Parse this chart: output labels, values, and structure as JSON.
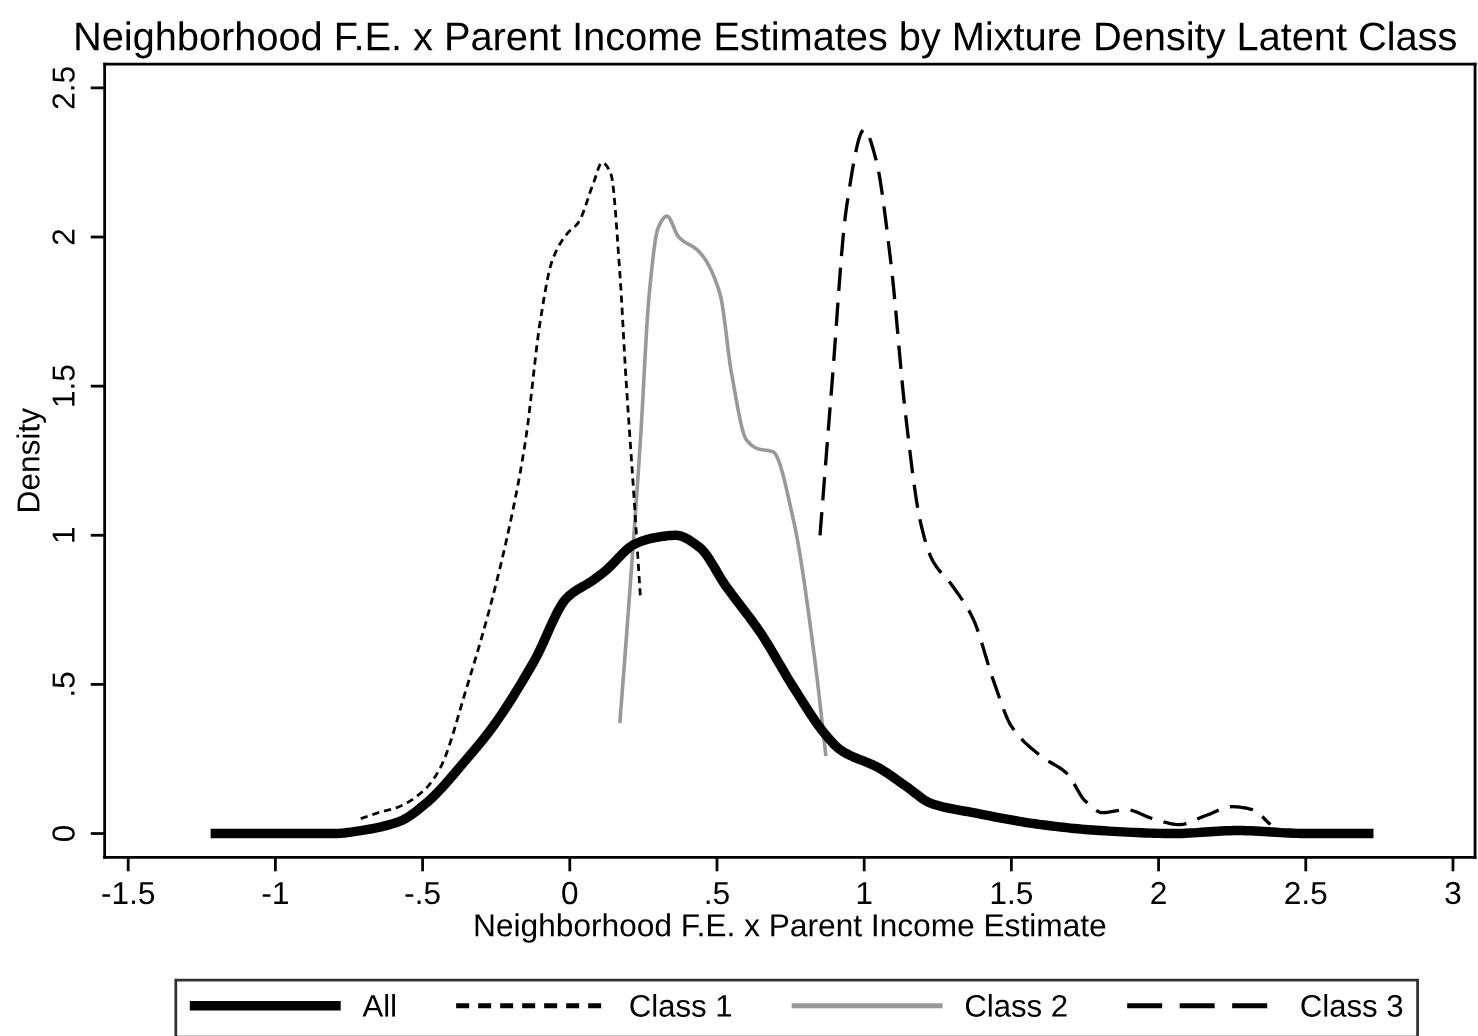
{
  "chart_data": {
    "type": "line",
    "title": "Neighborhood F.E. x Parent Income Estimates by Mixture Density Latent Class",
    "xlabel": "Neighborhood F.E. x Parent Income Estimate",
    "ylabel": "Density",
    "xlim": [
      -1.58,
      3.075
    ],
    "ylim": [
      -0.08,
      2.58
    ],
    "xticks": [
      -1.5,
      -1,
      {
        "value": -0.5,
        "label": "-.5"
      },
      0,
      {
        "value": 0.5,
        "label": ".5"
      },
      1,
      1.5,
      2,
      2.5,
      3
    ],
    "yticks": [
      0,
      {
        "value": 0.5,
        "label": ".5"
      },
      1,
      1.5,
      2,
      2.5
    ],
    "grid": false,
    "legend": "bottom",
    "marker": "none",
    "series": [
      {
        "name": "All",
        "color": "#000000",
        "line_style": "solid",
        "x": [
          -1.22,
          -0.8,
          -0.71,
          -0.58,
          -0.49,
          -0.35,
          -0.26,
          -0.12,
          -0.01,
          0.08,
          0.12,
          0.22,
          0.28,
          0.36,
          0.44,
          0.53,
          0.65,
          0.76,
          0.87,
          0.92,
          1.05,
          1.14,
          1.23,
          1.37,
          1.6,
          1.8,
          2.05,
          2.27,
          2.5,
          2.73
        ],
        "values": [
          0,
          0,
          0.01,
          0.04,
          0.1,
          0.25,
          0.36,
          0.58,
          0.79,
          0.85,
          0.88,
          0.97,
          0.99,
          1.0,
          0.96,
          0.83,
          0.67,
          0.49,
          0.33,
          0.28,
          0.22,
          0.16,
          0.1,
          0.07,
          0.03,
          0.01,
          0,
          0.01,
          0,
          0
        ]
      },
      {
        "name": "Class 1",
        "color": "#000000",
        "line_style": "dotted",
        "x": [
          -0.71,
          -0.65,
          -0.58,
          -0.49,
          -0.44,
          -0.35,
          -0.26,
          -0.19,
          -0.15,
          -0.1,
          -0.06,
          -0.01,
          0.03,
          0.08,
          0.11,
          0.14,
          0.17,
          0.19,
          0.22,
          0.24
        ],
        "values": [
          0.05,
          0.07,
          0.09,
          0.15,
          0.22,
          0.49,
          0.8,
          1.1,
          1.32,
          1.72,
          1.92,
          2.01,
          2.05,
          2.18,
          2.25,
          2.21,
          1.88,
          1.54,
          1.1,
          0.79
        ]
      },
      {
        "name": "Class 2",
        "color": "#999999",
        "line_style": "solid",
        "x": [
          0.17,
          0.2,
          0.24,
          0.27,
          0.3,
          0.33,
          0.37,
          0.44,
          0.51,
          0.55,
          0.6,
          0.64,
          0.69,
          0.76,
          0.83,
          0.87
        ],
        "values": [
          0.37,
          0.76,
          1.32,
          1.81,
          2.03,
          2.07,
          2.0,
          1.95,
          1.81,
          1.54,
          1.32,
          1.29,
          1.28,
          1.05,
          0.6,
          0.26
        ]
      },
      {
        "name": "Class 3",
        "color": "#000000",
        "line_style": "dashed",
        "x": [
          0.85,
          0.89,
          0.94,
          1.0,
          1.04,
          1.09,
          1.14,
          1.19,
          1.23,
          1.3,
          1.37,
          1.44,
          1.5,
          1.6,
          1.69,
          1.75,
          1.81,
          1.89,
          1.98,
          2.07,
          2.16,
          2.25,
          2.32,
          2.38
        ],
        "values": [
          1.0,
          1.5,
          2.1,
          2.36,
          2.26,
          1.92,
          1.41,
          1.05,
          0.92,
          0.83,
          0.72,
          0.51,
          0.36,
          0.26,
          0.2,
          0.11,
          0.07,
          0.08,
          0.05,
          0.03,
          0.06,
          0.09,
          0.08,
          0.03
        ]
      }
    ]
  }
}
